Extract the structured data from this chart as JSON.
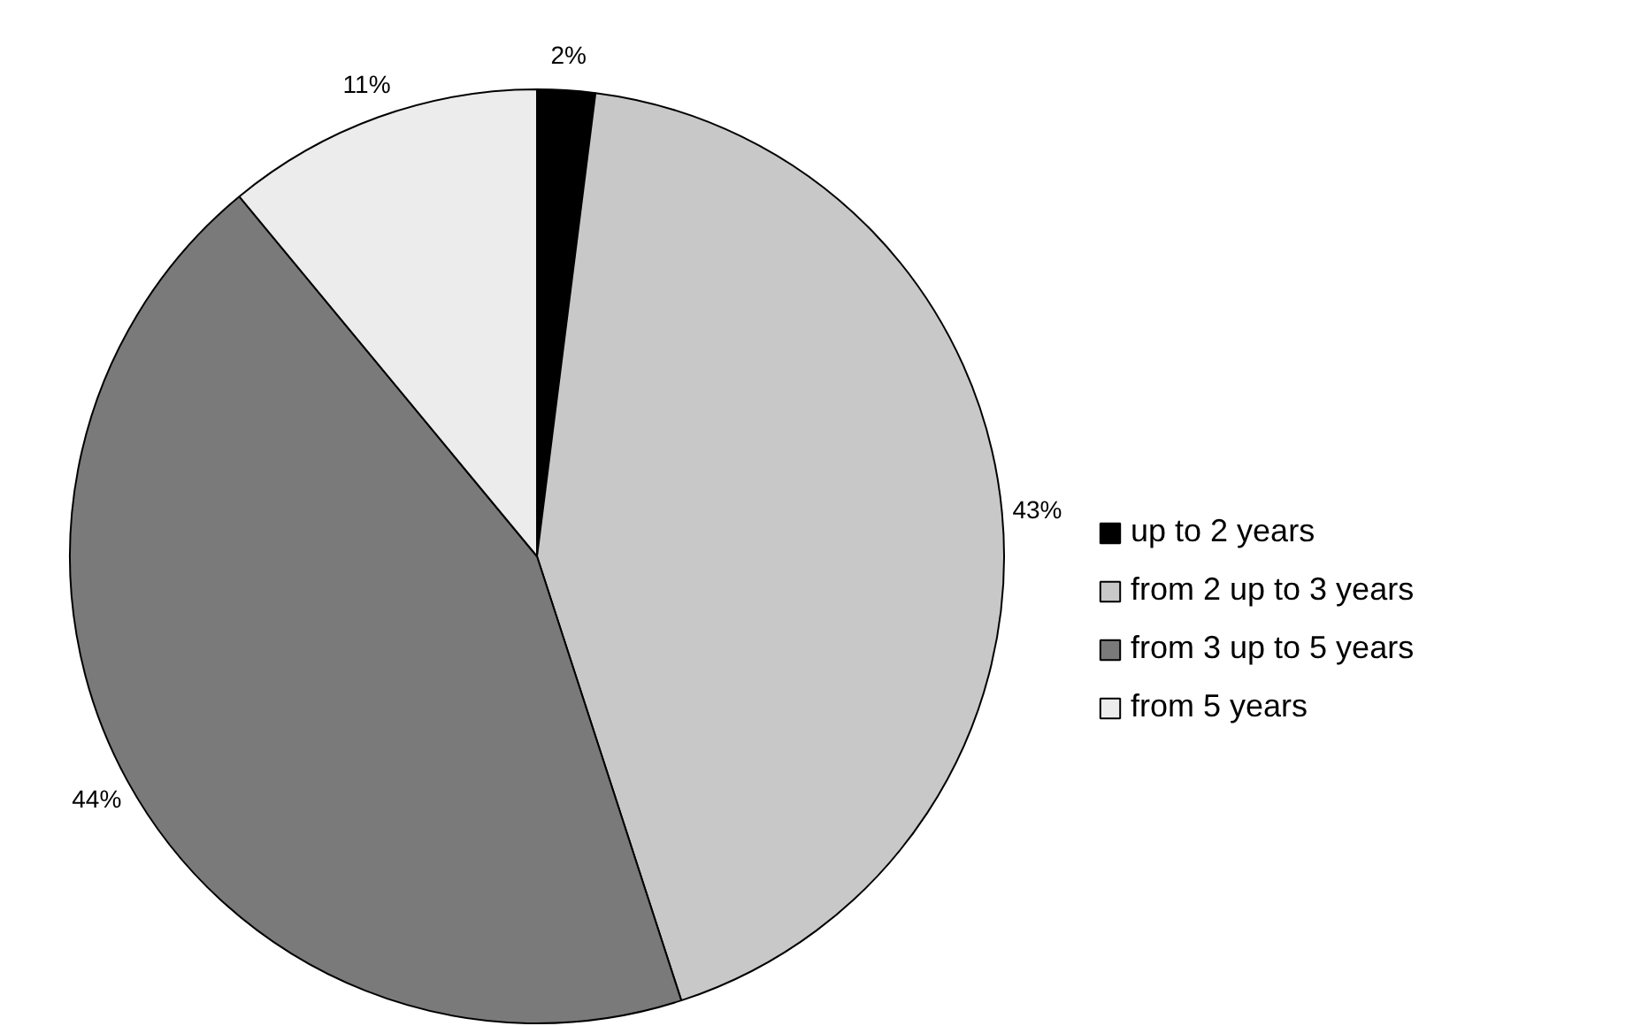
{
  "chart_data": {
    "type": "pie",
    "categories": [
      "up to 2 years",
      "from 2 up to 3 years",
      "from 3 up to 5 years",
      "from 5 years"
    ],
    "values": [
      2,
      43,
      44,
      11
    ],
    "colors": [
      "#000000",
      "#c8c8c8",
      "#7a7a7a",
      "#ececec"
    ],
    "value_labels": [
      "2%",
      "43%",
      "44%",
      "11%"
    ],
    "legend": "right"
  }
}
